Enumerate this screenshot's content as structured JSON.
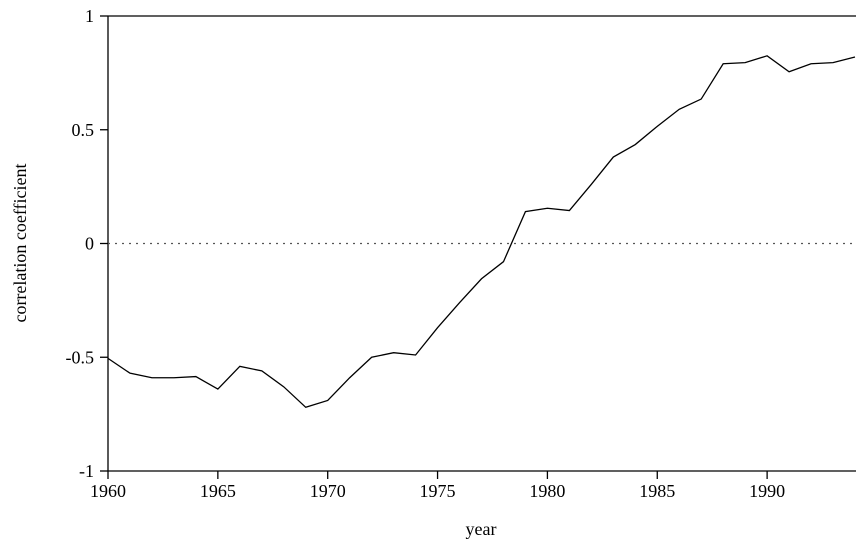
{
  "chart_data": {
    "type": "line",
    "x_label": "year",
    "y_label": "correlation coefficient",
    "x": [
      1960,
      1961,
      1962,
      1963,
      1964,
      1965,
      1966,
      1967,
      1968,
      1969,
      1970,
      1971,
      1972,
      1973,
      1974,
      1975,
      1976,
      1977,
      1978,
      1979,
      1980,
      1981,
      1982,
      1983,
      1984,
      1985,
      1986,
      1987,
      1988,
      1989,
      1990,
      1991,
      1992,
      1993,
      1994
    ],
    "series": [
      {
        "color": "#000000",
        "values": [
          -0.505,
          -0.57,
          -0.59,
          -0.59,
          -0.585,
          -0.64,
          -0.54,
          -0.56,
          -0.63,
          -0.72,
          -0.69,
          -0.59,
          -0.5,
          -0.48,
          -0.49,
          -0.37,
          -0.26,
          -0.155,
          -0.08,
          0.14,
          0.155,
          0.145,
          0.26,
          0.38,
          0.435,
          0.515,
          0.59,
          0.635,
          0.79,
          0.795,
          0.825,
          0.755,
          0.79,
          0.795,
          0.82
        ]
      }
    ],
    "xlim": [
      1960,
      1994
    ],
    "xticks": [
      1960,
      1965,
      1970,
      1975,
      1980,
      1985,
      1990
    ],
    "ylim": [
      -1,
      1
    ],
    "yticks": [
      -1,
      -0.5,
      0,
      0.5,
      1
    ],
    "hline": 0
  }
}
